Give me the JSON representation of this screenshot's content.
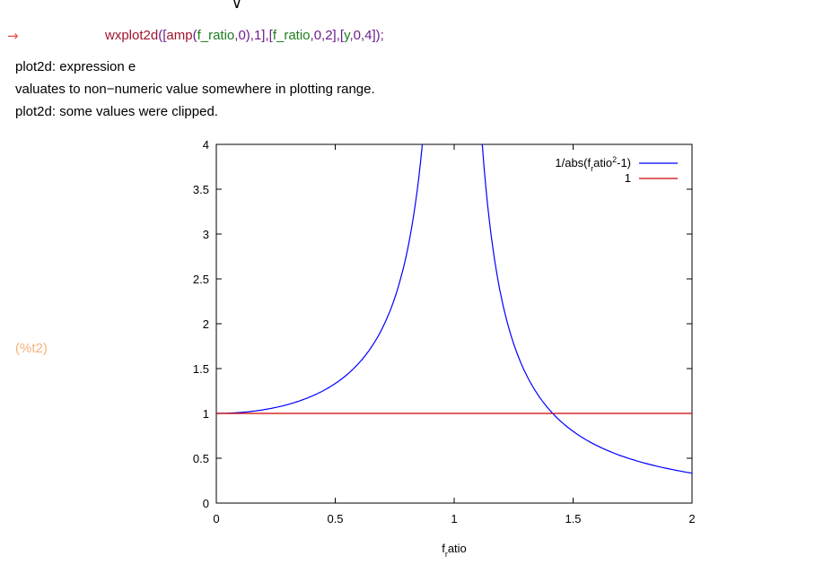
{
  "input": {
    "arrow": "→",
    "tokens": [
      {
        "text": "wxplot2d",
        "cls": "fn"
      },
      {
        "text": "([",
        "cls": "punc"
      },
      {
        "text": "amp",
        "cls": "fn"
      },
      {
        "text": "(",
        "cls": "punc"
      },
      {
        "text": "f_ratio",
        "cls": "arg"
      },
      {
        "text": ",",
        "cls": "punc"
      },
      {
        "text": "0",
        "cls": "num"
      },
      {
        "text": "),",
        "cls": "punc"
      },
      {
        "text": "1",
        "cls": "num"
      },
      {
        "text": "],[",
        "cls": "punc"
      },
      {
        "text": "f_ratio",
        "cls": "arg"
      },
      {
        "text": ",",
        "cls": "punc"
      },
      {
        "text": "0",
        "cls": "num"
      },
      {
        "text": ",",
        "cls": "punc"
      },
      {
        "text": "2",
        "cls": "num"
      },
      {
        "text": "],[",
        "cls": "punc"
      },
      {
        "text": "y",
        "cls": "arg"
      },
      {
        "text": ",",
        "cls": "punc"
      },
      {
        "text": "0",
        "cls": "num"
      },
      {
        "text": ",",
        "cls": "punc"
      },
      {
        "text": "4",
        "cls": "num"
      },
      {
        "text": "]);",
        "cls": "punc"
      }
    ]
  },
  "messages": [
    "plot2d: expression e",
    "valuates to non−numeric value somewhere in plotting range.",
    "plot2d: some values were clipped."
  ],
  "output_label": "(%t2)",
  "chart_data": {
    "type": "line",
    "xlabel_base": "f",
    "xlabel_sub": "r",
    "xlabel_rest": "atio",
    "xlim": [
      0,
      2
    ],
    "ylim": [
      0,
      4
    ],
    "x_ticks": [
      "0",
      "0.5",
      "1",
      "1.5",
      "2"
    ],
    "y_ticks": [
      "0",
      "0.5",
      "1",
      "1.5",
      "2",
      "2.5",
      "3",
      "3.5",
      "4"
    ],
    "x_tick_values": [
      0,
      0.5,
      1,
      1.5,
      2
    ],
    "y_tick_values": [
      0,
      0.5,
      1,
      1.5,
      2,
      2.5,
      3,
      3.5,
      4
    ],
    "legend_position": "top-right",
    "series": [
      {
        "name_parts": [
          "1/abs(f",
          "r",
          "atio",
          "2",
          "-1)"
        ],
        "color": "#0000ff",
        "x": [
          0,
          0.1,
          0.2,
          0.3,
          0.4,
          0.5,
          0.6,
          0.7,
          0.75,
          0.8,
          0.85,
          0.866,
          1.118,
          1.15,
          1.2,
          1.3,
          1.4,
          1.414,
          1.5,
          1.6,
          1.7,
          1.8,
          1.9,
          2.0
        ],
        "y": [
          1,
          1.0101,
          1.0417,
          1.0989,
          1.1905,
          1.3333,
          1.5625,
          1.9608,
          2.2857,
          2.7778,
          3.6036,
          4.0,
          4.0,
          3.096,
          2.2727,
          1.4493,
          1.0417,
          1.0,
          0.8,
          0.641,
          0.5291,
          0.4464,
          0.3831,
          0.3333
        ]
      },
      {
        "name": "1",
        "color": "#cc0000",
        "x": [
          0,
          2
        ],
        "y": [
          1,
          1
        ]
      }
    ]
  }
}
